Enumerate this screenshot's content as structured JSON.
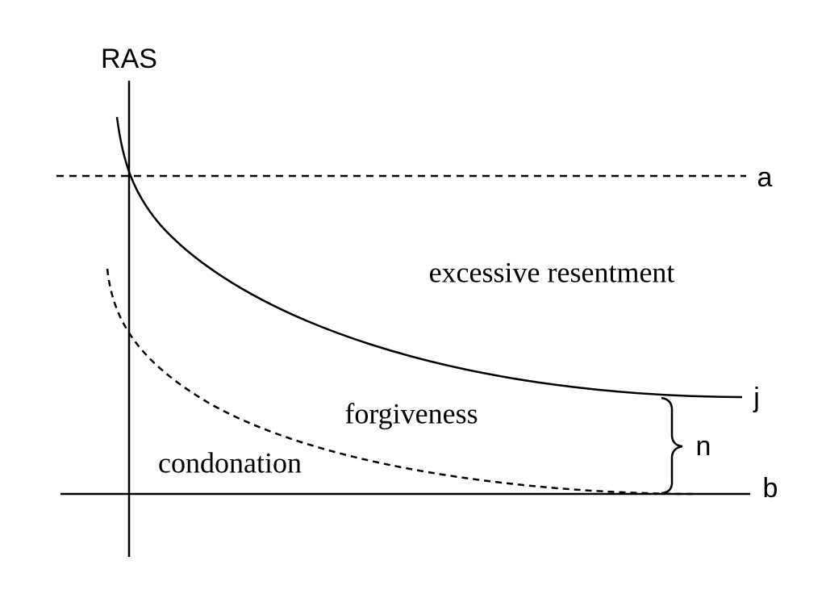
{
  "axis_label": "RAS",
  "lines": {
    "a": "a",
    "j": "j",
    "b": "b"
  },
  "brace_label": "n",
  "regions": [
    "excessive resentment",
    "forgiveness",
    "condonation"
  ]
}
